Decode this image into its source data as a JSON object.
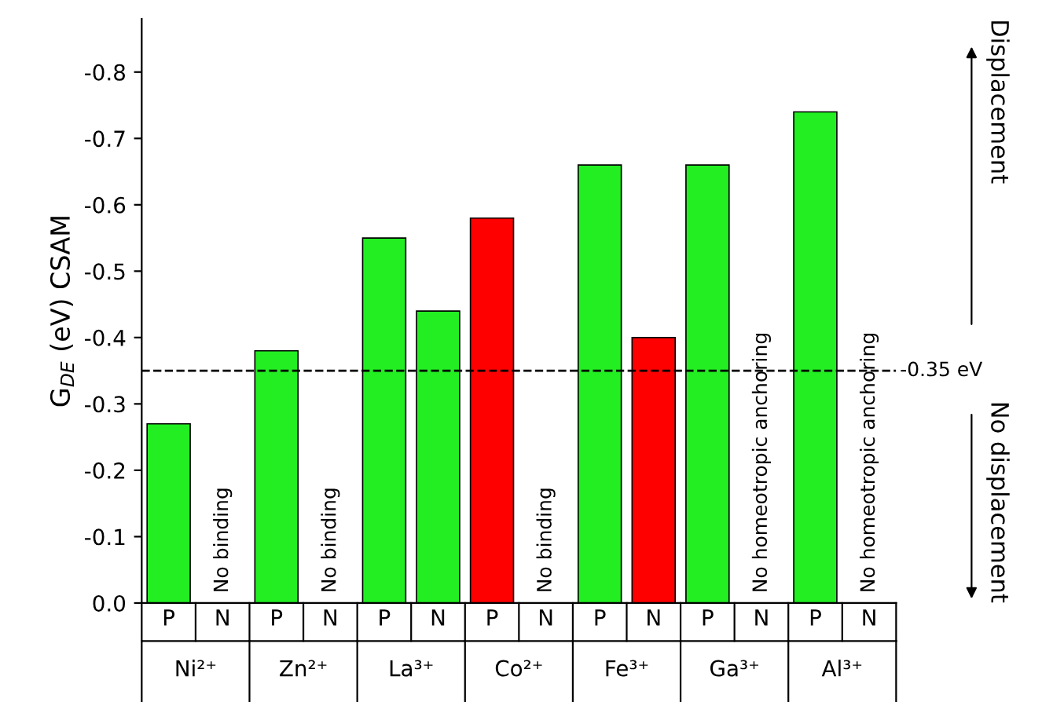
{
  "chart_data": {
    "type": "bar",
    "ylabel": "G$_{DE}$ (eV) CSAM",
    "categories": [
      "P",
      "N",
      "P",
      "N",
      "P",
      "N",
      "P",
      "N",
      "P",
      "N",
      "P",
      "N",
      "P",
      "N"
    ],
    "values": [
      -0.27,
      null,
      -0.38,
      null,
      -0.55,
      -0.44,
      -0.58,
      null,
      -0.66,
      -0.4,
      -0.66,
      null,
      -0.74,
      null
    ],
    "colors": [
      "#22ee22",
      "#22ee22",
      "#22ee22",
      "#22ee22",
      "#22ee22",
      "#22ee22",
      "#ff0000",
      "#22ee22",
      "#22ee22",
      "#ff0000",
      "#22ee22",
      "#22ee22",
      "#22ee22",
      "#22ee22"
    ],
    "ylim": [
      0,
      -0.88
    ],
    "yticks": [
      {
        "value": 0,
        "label": "0.0"
      },
      -0.1,
      -0.2,
      -0.3,
      -0.4,
      -0.5,
      -0.6,
      -0.7,
      -0.8
    ],
    "ref_lines": [
      {
        "axis": "y",
        "value": -0.35,
        "label": "-0.35 eV",
        "line_style": "dashed",
        "color": "#000000"
      }
    ],
    "annotations": [
      "Ni²⁺",
      "Zn²⁺",
      "La³⁺",
      "Co²⁺",
      "Fe³⁺",
      "Ga³⁺",
      "Al³⁺",
      "No binding",
      "No binding",
      "No binding",
      "No homeotropic anchoring",
      "No homeotropic anchoring",
      "Displacement",
      "No displacement"
    ],
    "grid": false,
    "legend": false
  }
}
